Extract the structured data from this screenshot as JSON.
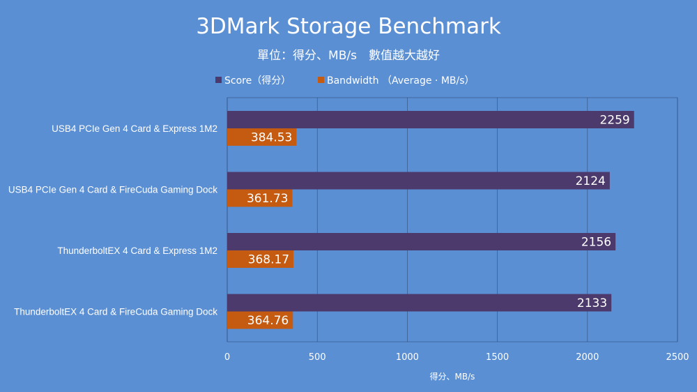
{
  "chart_data": {
    "type": "bar",
    "orientation": "horizontal",
    "title": "3DMark Storage Benchmark",
    "subtitle": "單位：得分、MB/s　數值越大越好",
    "xlabel": "得分、MB/s",
    "ylabel": "",
    "xlim": [
      0,
      2500
    ],
    "xticks": [
      0,
      500,
      1000,
      1500,
      2000,
      2500
    ],
    "grid": true,
    "legend_position": "top",
    "categories": [
      "USB4 PCIe Gen 4 Card & Express 1M2",
      "USB4 PCIe Gen 4 Card & FireCuda Gaming Dock",
      "ThunderboltEX 4 Card & Express 1M2",
      "ThunderboltEX 4 Card & FireCuda Gaming Dock"
    ],
    "series": [
      {
        "name": "Score（得分）",
        "color": "#4b3a6b",
        "values": [
          2259,
          2124,
          2156,
          2133
        ],
        "labels": [
          "2259",
          "2124",
          "2156",
          "2133"
        ]
      },
      {
        "name": "Bandwidth （Average · MB/s）",
        "color": "#c55a11",
        "values": [
          384.53,
          361.73,
          368.17,
          364.76
        ],
        "labels": [
          "384.53",
          "361.73",
          "368.17",
          "364.76"
        ]
      }
    ]
  }
}
